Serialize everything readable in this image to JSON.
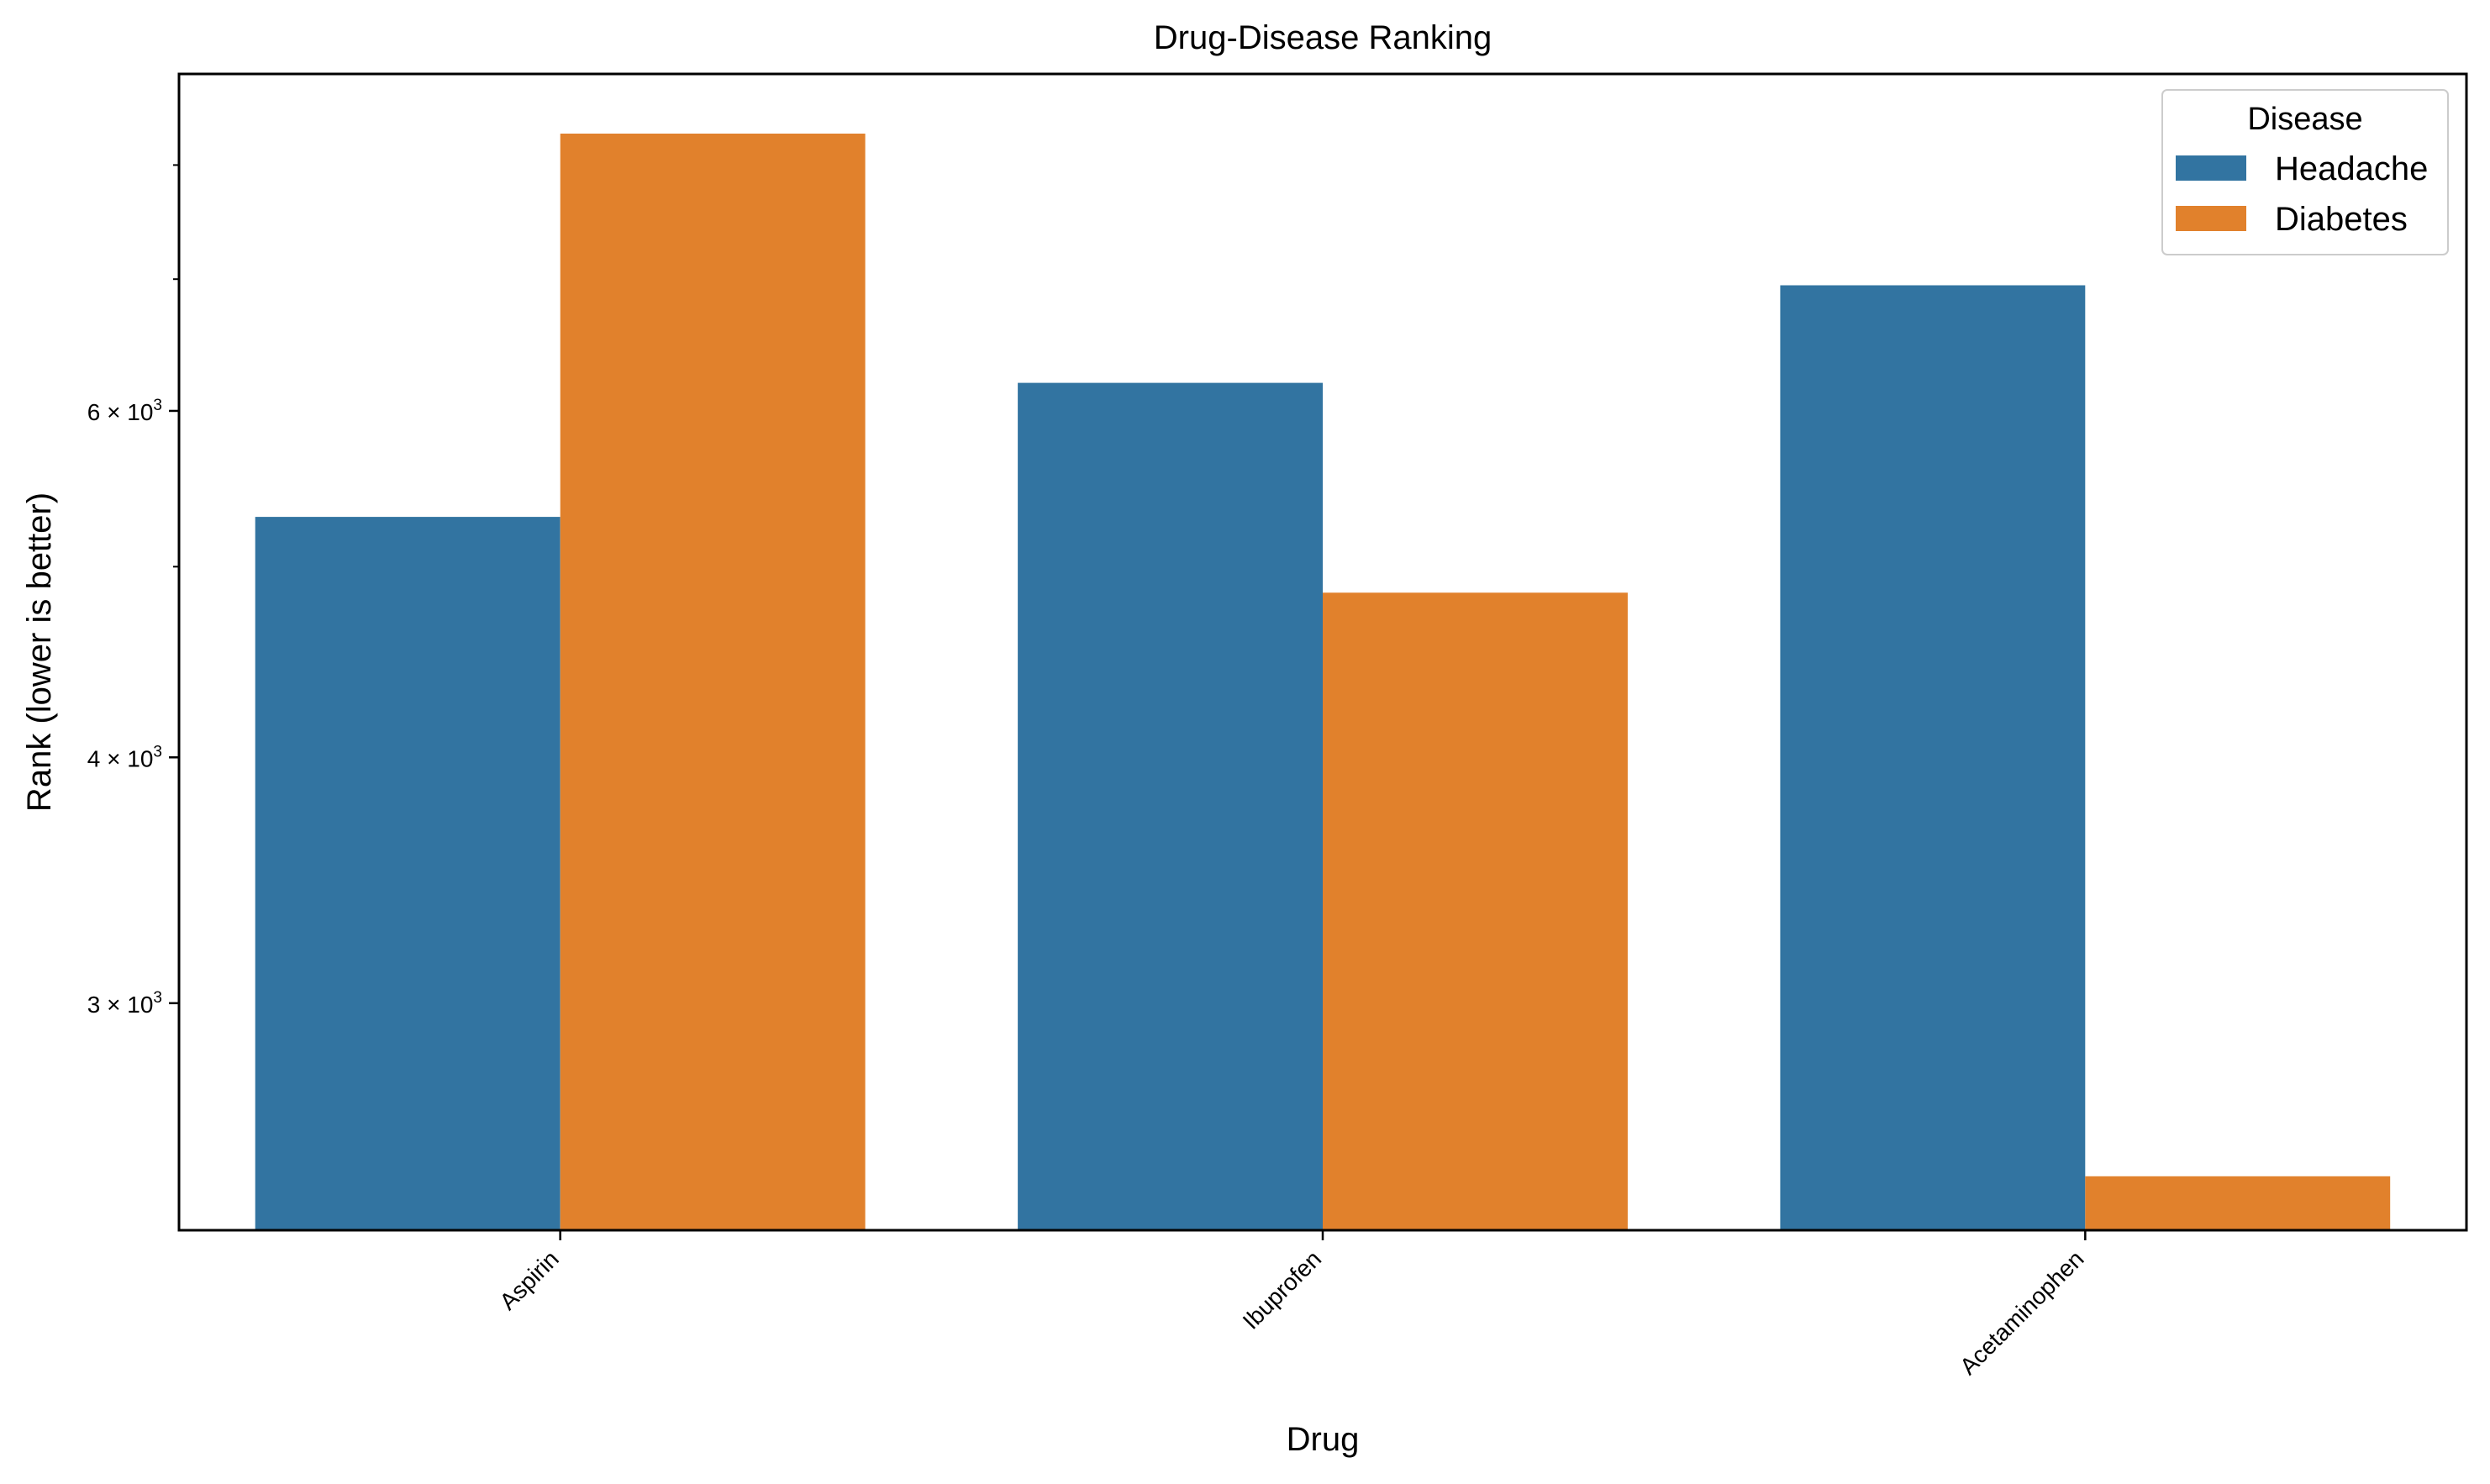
{
  "chart_data": {
    "type": "bar",
    "title": "Drug-Disease Ranking",
    "xlabel": "Drug",
    "ylabel": "Rank (lower is better)",
    "yscale": "log",
    "ylim": [
      2300,
      8900
    ],
    "categories": [
      "Aspirin",
      "Ibuprofen",
      "Acetaminophen"
    ],
    "series": [
      {
        "name": "Headache",
        "values": [
          5300,
          6200,
          6950
        ],
        "color": "#3274a1"
      },
      {
        "name": "Diabetes",
        "values": [
          8300,
          4850,
          2450
        ],
        "color": "#e1812c"
      }
    ],
    "yticks_major": [
      {
        "value": 3000,
        "mantissa": "3",
        "exponent": "3"
      },
      {
        "value": 4000,
        "mantissa": "4",
        "exponent": "3"
      },
      {
        "value": 6000,
        "mantissa": "6",
        "exponent": "3"
      }
    ],
    "yticks_minor": [
      5000,
      7000,
      8000
    ],
    "legend": {
      "title": "Disease",
      "placement": "top-right"
    },
    "grid": false
  }
}
